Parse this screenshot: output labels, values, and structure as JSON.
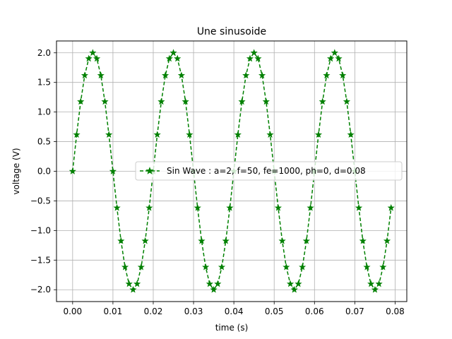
{
  "chart_data": {
    "type": "line",
    "title": "Une sinusoide",
    "xlabel": "time (s)",
    "ylabel": "voltage (V)",
    "xlim": [
      -0.004,
      0.0829
    ],
    "ylim": [
      -2.2,
      2.2
    ],
    "xticks": [
      0.0,
      0.01,
      0.02,
      0.03,
      0.04,
      0.05,
      0.06,
      0.07,
      0.08
    ],
    "xtick_labels": [
      "0.00",
      "0.01",
      "0.02",
      "0.03",
      "0.04",
      "0.05",
      "0.06",
      "0.07",
      "0.08"
    ],
    "yticks": [
      -2.0,
      -1.5,
      -1.0,
      -0.5,
      0.0,
      0.5,
      1.0,
      1.5,
      2.0
    ],
    "ytick_labels": [
      "−2.0",
      "−1.5",
      "−1.0",
      "−0.5",
      "0.0",
      "0.5",
      "1.0",
      "1.5",
      "2.0"
    ],
    "grid": true,
    "legend_position": "center-right",
    "series": [
      {
        "name": "Sin Wave : a=2, f=50, fe=1000, ph=0, d=0.08",
        "color": "#008000",
        "line_style": "dashed",
        "marker": "star",
        "x": [
          0.0,
          0.001,
          0.002,
          0.003,
          0.004,
          0.005,
          0.006,
          0.007,
          0.008,
          0.009,
          0.01,
          0.011,
          0.012,
          0.013,
          0.014,
          0.015,
          0.016,
          0.017,
          0.018,
          0.019,
          0.02,
          0.021,
          0.022,
          0.023,
          0.024,
          0.025,
          0.026,
          0.027,
          0.028,
          0.029,
          0.03,
          0.031,
          0.032,
          0.033,
          0.034,
          0.035,
          0.036,
          0.037,
          0.038,
          0.039,
          0.04,
          0.041,
          0.042,
          0.043,
          0.044,
          0.045,
          0.046,
          0.047,
          0.048,
          0.049,
          0.05,
          0.051,
          0.052,
          0.053,
          0.054,
          0.055,
          0.056,
          0.057,
          0.058,
          0.059,
          0.06,
          0.061,
          0.062,
          0.063,
          0.064,
          0.065,
          0.066,
          0.067,
          0.068,
          0.069,
          0.07,
          0.071,
          0.072,
          0.073,
          0.074,
          0.075,
          0.076,
          0.077,
          0.078,
          0.079
        ],
        "y": [
          0.0,
          0.618,
          1.176,
          1.618,
          1.902,
          2.0,
          1.902,
          1.618,
          1.176,
          0.618,
          0.0,
          -0.618,
          -1.176,
          -1.618,
          -1.902,
          -2.0,
          -1.902,
          -1.618,
          -1.176,
          -0.618,
          0.0,
          0.618,
          1.176,
          1.618,
          1.902,
          2.0,
          1.902,
          1.618,
          1.176,
          0.618,
          0.0,
          -0.618,
          -1.176,
          -1.618,
          -1.902,
          -2.0,
          -1.902,
          -1.618,
          -1.176,
          -0.618,
          0.0,
          0.618,
          1.176,
          1.618,
          1.902,
          2.0,
          1.902,
          1.618,
          1.176,
          0.618,
          0.0,
          -0.618,
          -1.176,
          -1.618,
          -1.902,
          -2.0,
          -1.902,
          -1.618,
          -1.176,
          -0.618,
          0.0,
          0.618,
          1.176,
          1.618,
          1.902,
          2.0,
          1.902,
          1.618,
          1.176,
          0.618,
          0.0,
          -0.618,
          -1.176,
          -1.618,
          -1.902,
          -2.0,
          -1.902,
          -1.618,
          -1.176,
          -0.618
        ]
      }
    ]
  }
}
